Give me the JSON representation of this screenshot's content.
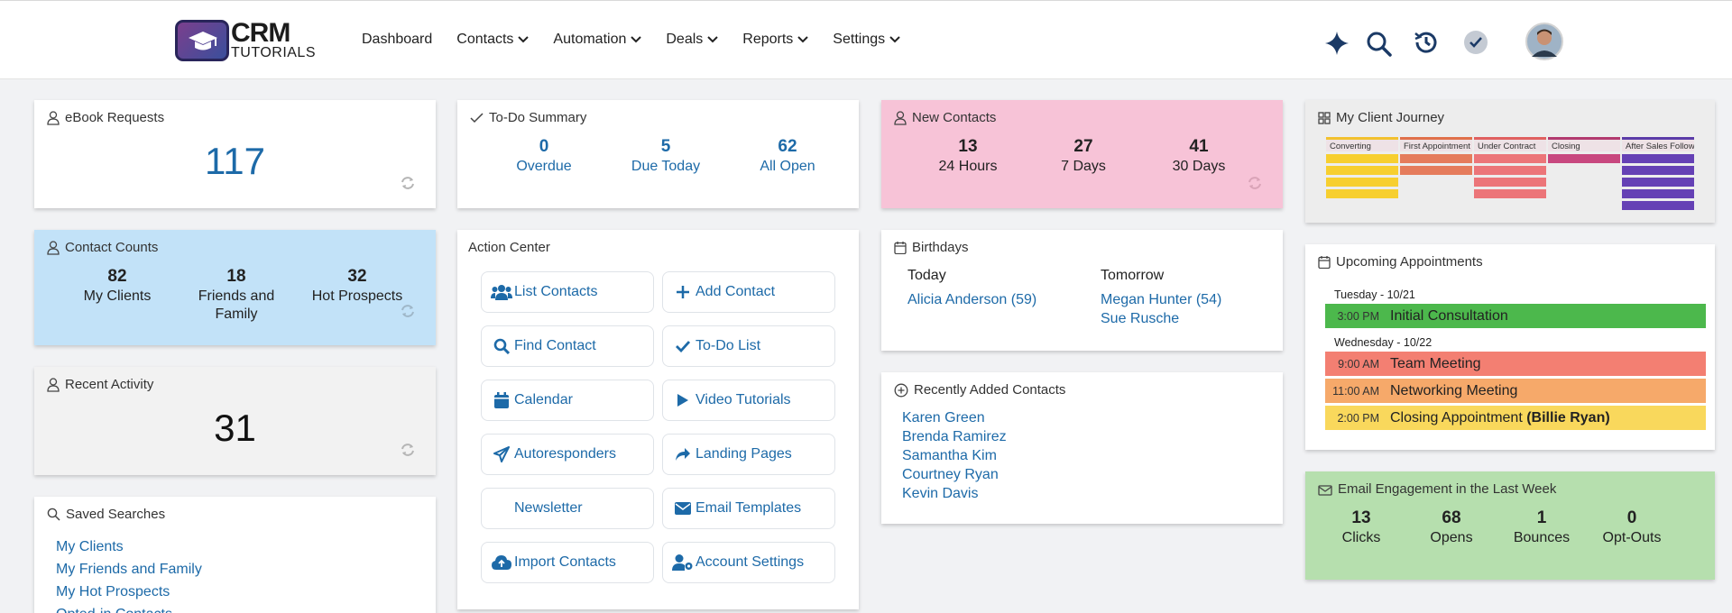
{
  "nav": {
    "logo": {
      "line1": "CRM",
      "line2": "TUTORIALS"
    },
    "items": [
      {
        "label": "Dashboard",
        "dropdown": false
      },
      {
        "label": "Contacts",
        "dropdown": true
      },
      {
        "label": "Automation",
        "dropdown": true
      },
      {
        "label": "Deals",
        "dropdown": true
      },
      {
        "label": "Reports",
        "dropdown": true
      },
      {
        "label": "Settings",
        "dropdown": true
      }
    ],
    "icons": [
      "sparkle-icon",
      "search-icon",
      "history-icon",
      "check-circle-icon",
      "avatar"
    ]
  },
  "ebook": {
    "title": "eBook Requests",
    "value": "117"
  },
  "todo": {
    "title": "To-Do Summary",
    "stats": [
      {
        "n": "0",
        "l": "Overdue"
      },
      {
        "n": "5",
        "l": "Due Today"
      },
      {
        "n": "62",
        "l": "All Open"
      }
    ]
  },
  "new_contacts": {
    "title": "New Contacts",
    "stats": [
      {
        "n": "13",
        "l": "24 Hours"
      },
      {
        "n": "27",
        "l": "7 Days"
      },
      {
        "n": "41",
        "l": "30 Days"
      }
    ]
  },
  "journey": {
    "title": "My Client Journey",
    "columns": [
      {
        "label": "Converting",
        "color": "#f2c12e",
        "bar": "#f7cf2f",
        "bars": 4
      },
      {
        "label": "First Appointment",
        "color": "#e0704a",
        "bar": "#e57c5c",
        "bars": 2
      },
      {
        "label": "Under Contract",
        "color": "#e06060",
        "bar": "#ec7579",
        "bars": 4
      },
      {
        "label": "Closing",
        "color": "#b23a6f",
        "bar": "#c8487f",
        "bars": 1
      },
      {
        "label": "After Sales Follow",
        "color": "#5b3ca8",
        "bar": "#6541b5",
        "bars": 5
      }
    ]
  },
  "contact_counts": {
    "title": "Contact Counts",
    "stats": [
      {
        "n": "82",
        "l": "My Clients"
      },
      {
        "n": "18",
        "l": "Friends and Family"
      },
      {
        "n": "32",
        "l": "Hot Prospects"
      }
    ]
  },
  "action_center": {
    "title": "Action Center",
    "buttons": [
      {
        "label": "List Contacts",
        "icon": "users-icon"
      },
      {
        "label": "Add Contact",
        "icon": "plus-icon"
      },
      {
        "label": "Find Contact",
        "icon": "search-icon"
      },
      {
        "label": "To-Do List",
        "icon": "check-icon"
      },
      {
        "label": "Calendar",
        "icon": "calendar-icon"
      },
      {
        "label": "Video Tutorials",
        "icon": "play-icon"
      },
      {
        "label": "Autoresponders",
        "icon": "paper-plane-icon"
      },
      {
        "label": "Landing Pages",
        "icon": "share-icon"
      },
      {
        "label": "Newsletter",
        "icon": ""
      },
      {
        "label": "Email Templates",
        "icon": "envelope-icon"
      },
      {
        "label": "Import Contacts",
        "icon": "cloud-upload-icon"
      },
      {
        "label": "Account Settings",
        "icon": "user-gear-icon"
      }
    ]
  },
  "birthdays": {
    "title": "Birthdays",
    "today": {
      "label": "Today",
      "names": [
        "Alicia Anderson (59)"
      ]
    },
    "tomorrow": {
      "label": "Tomorrow",
      "names": [
        "Megan Hunter (54)",
        "Sue Rusche"
      ]
    }
  },
  "appointments": {
    "title": "Upcoming Appointments",
    "days": [
      {
        "date": "Tuesday - 10/21",
        "items": [
          {
            "time": "3:00 PM",
            "title": "Initial Consultation",
            "color": "#4cb84c"
          }
        ]
      },
      {
        "date": "Wednesday - 10/22",
        "items": [
          {
            "time": "9:00 AM",
            "title": "Team Meeting",
            "color": "#f37f72"
          },
          {
            "time": "11:00 AM",
            "title": "Networking Meeting",
            "color": "#f6a96a"
          },
          {
            "time": "2:00 PM",
            "title": "Closing Appointment",
            "bold": "(Billie Ryan)",
            "color": "#f9d85c"
          }
        ]
      }
    ]
  },
  "recent_activity": {
    "title": "Recent Activity",
    "value": "31"
  },
  "recently_added": {
    "title": "Recently Added Contacts",
    "names": [
      "Karen Green",
      "Brenda Ramirez",
      "Samantha Kim",
      "Courtney Ryan",
      "Kevin Davis"
    ]
  },
  "saved_searches": {
    "title": "Saved Searches",
    "items": [
      "My Clients",
      "My Friends and Family",
      "My Hot Prospects",
      "Opted-in Contacts"
    ]
  },
  "email_engagement": {
    "title": "Email Engagement in the Last Week",
    "stats": [
      {
        "n": "13",
        "l": "Clicks"
      },
      {
        "n": "68",
        "l": "Opens"
      },
      {
        "n": "1",
        "l": "Bounces"
      },
      {
        "n": "0",
        "l": "Opt-Outs"
      }
    ]
  }
}
